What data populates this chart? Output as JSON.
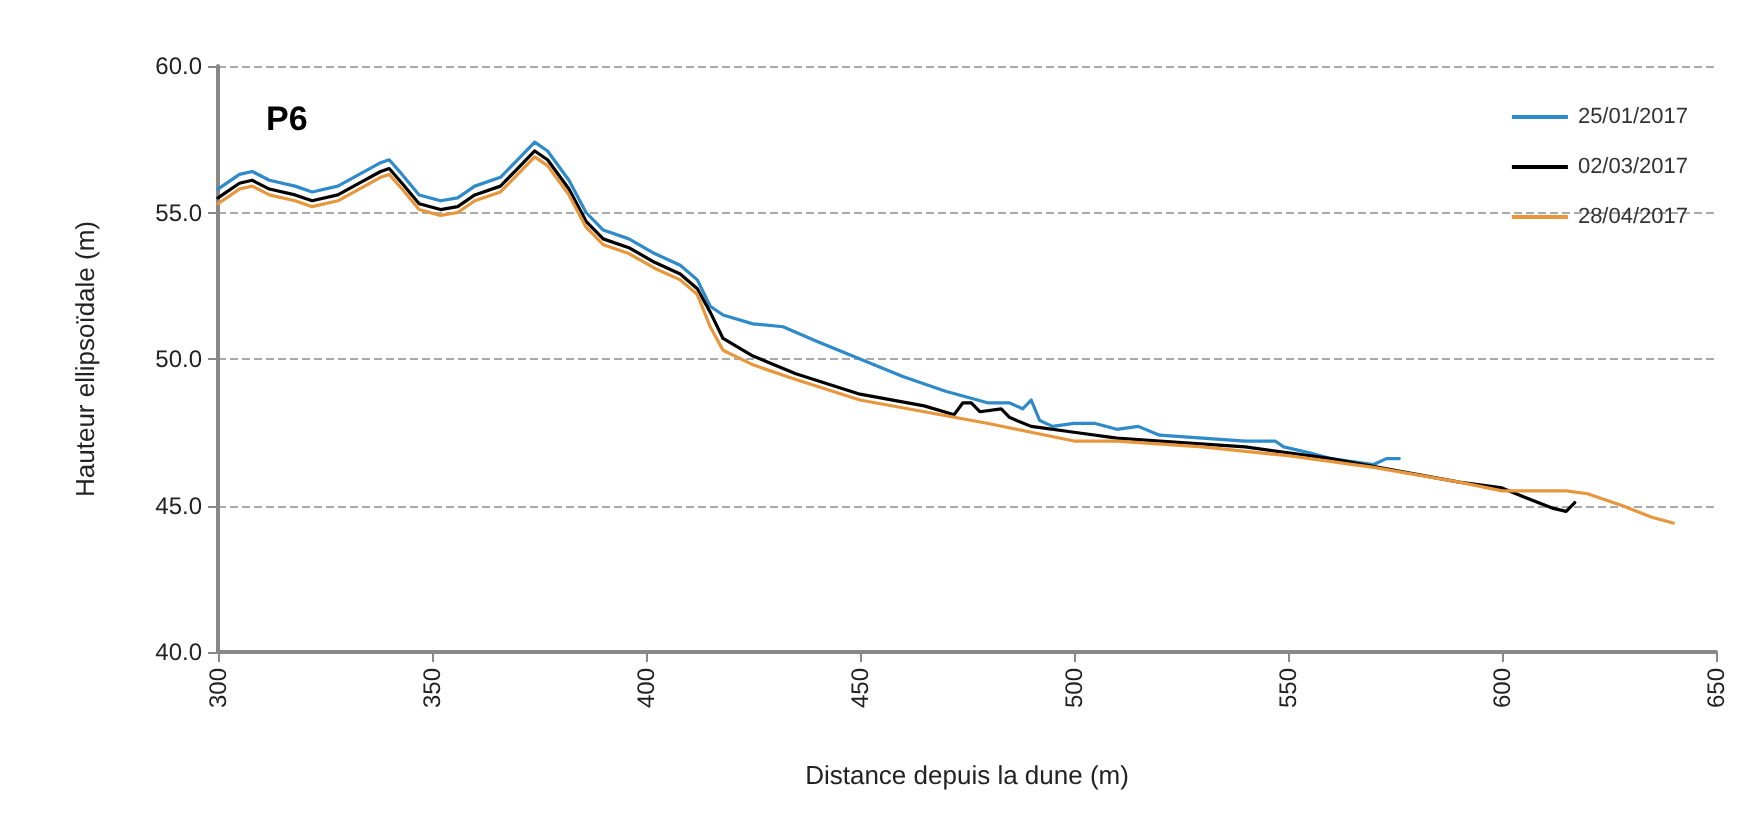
{
  "chart_data": {
    "type": "line",
    "title": "P6",
    "xlabel": "Distance depuis la dune (m)",
    "ylabel": "Hauteur ellipsoïdale (m)",
    "xlim": [
      300,
      650
    ],
    "xticks": [
      300,
      350,
      400,
      450,
      500,
      550,
      600,
      650
    ],
    "ylim": [
      40,
      60
    ],
    "yticks": [
      {
        "value": 40,
        "label": "40.0"
      },
      {
        "value": 45,
        "label": "45.0"
      },
      {
        "value": 50,
        "label": "50.0"
      },
      {
        "value": 55,
        "label": "55.0"
      },
      {
        "value": 60,
        "label": "60.0"
      }
    ],
    "grid": "y",
    "legend": "top right",
    "marker": "none",
    "line_style": "solid",
    "series": [
      {
        "name": "25/01/2017",
        "color": "#2e8ac8",
        "x": [
          300,
          305,
          308,
          312,
          318,
          322,
          328,
          333,
          338,
          340,
          343,
          347,
          352,
          356,
          360,
          366,
          370,
          374,
          377,
          382,
          386,
          390,
          396,
          402,
          408,
          412,
          415,
          418,
          425,
          432,
          440,
          450,
          460,
          470,
          480,
          485,
          488,
          490,
          492,
          495,
          500,
          505,
          510,
          515,
          520,
          530,
          540,
          547,
          549,
          555,
          560,
          570,
          573,
          576
        ],
        "values": [
          55.8,
          56.3,
          56.4,
          56.1,
          55.9,
          55.7,
          55.9,
          56.3,
          56.7,
          56.8,
          56.3,
          55.6,
          55.4,
          55.5,
          55.9,
          56.2,
          56.8,
          57.4,
          57.1,
          56.1,
          55.0,
          54.4,
          54.1,
          53.6,
          53.2,
          52.7,
          51.8,
          51.5,
          51.2,
          51.1,
          50.6,
          50.0,
          49.4,
          48.9,
          48.5,
          48.5,
          48.3,
          48.6,
          47.9,
          47.7,
          47.8,
          47.8,
          47.6,
          47.7,
          47.4,
          47.3,
          47.2,
          47.2,
          47.0,
          46.8,
          46.6,
          46.4,
          46.6,
          46.6
        ]
      },
      {
        "name": "02/03/2017",
        "color": "#000000",
        "x": [
          300,
          305,
          308,
          312,
          318,
          322,
          328,
          333,
          338,
          340,
          343,
          347,
          352,
          356,
          360,
          366,
          370,
          374,
          377,
          382,
          386,
          390,
          396,
          402,
          408,
          412,
          415,
          418,
          425,
          435,
          450,
          465,
          472,
          474,
          476,
          478,
          483,
          485,
          490,
          500,
          510,
          520,
          540,
          560,
          575,
          590,
          600,
          605,
          612,
          615,
          617
        ],
        "values": [
          55.5,
          56.0,
          56.1,
          55.8,
          55.6,
          55.4,
          55.6,
          56.0,
          56.4,
          56.5,
          56.0,
          55.3,
          55.1,
          55.2,
          55.6,
          55.9,
          56.5,
          57.1,
          56.8,
          55.8,
          54.7,
          54.1,
          53.8,
          53.3,
          52.9,
          52.4,
          51.6,
          50.7,
          50.1,
          49.5,
          48.8,
          48.4,
          48.1,
          48.5,
          48.5,
          48.2,
          48.3,
          48.0,
          47.7,
          47.5,
          47.3,
          47.2,
          47.0,
          46.6,
          46.2,
          45.8,
          45.6,
          45.3,
          44.9,
          44.8,
          45.1
        ]
      },
      {
        "name": "28/04/2017",
        "color": "#e8963c",
        "x": [
          300,
          305,
          308,
          312,
          318,
          322,
          328,
          333,
          338,
          340,
          343,
          347,
          352,
          356,
          360,
          366,
          370,
          374,
          377,
          382,
          386,
          390,
          396,
          402,
          408,
          412,
          415,
          418,
          425,
          435,
          450,
          465,
          480,
          490,
          500,
          510,
          530,
          550,
          570,
          590,
          600,
          610,
          615,
          620,
          628,
          635,
          640
        ],
        "values": [
          55.3,
          55.8,
          55.9,
          55.6,
          55.4,
          55.2,
          55.4,
          55.8,
          56.2,
          56.3,
          55.8,
          55.1,
          54.9,
          55.0,
          55.4,
          55.7,
          56.3,
          56.9,
          56.6,
          55.6,
          54.5,
          53.9,
          53.6,
          53.1,
          52.7,
          52.2,
          51.1,
          50.3,
          49.8,
          49.3,
          48.6,
          48.2,
          47.8,
          47.5,
          47.2,
          47.2,
          47.0,
          46.7,
          46.3,
          45.8,
          45.5,
          45.5,
          45.5,
          45.4,
          45.0,
          44.6,
          44.4
        ]
      }
    ]
  }
}
